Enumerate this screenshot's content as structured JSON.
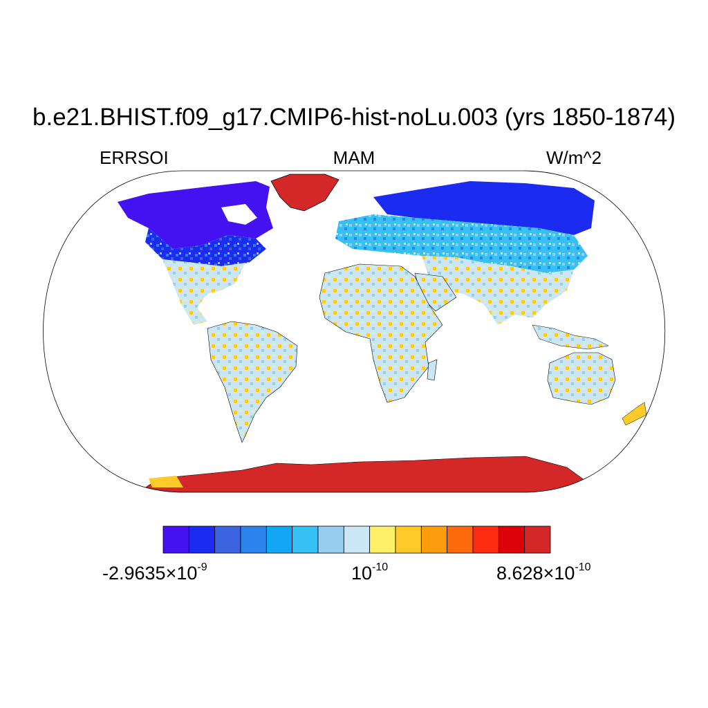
{
  "title": "b.e21.BHIST.f09_g17.CMIP6-hist-noLu.003 (yrs 1850-1874)",
  "subtitles": {
    "left": "ERRSOI",
    "center": "MAM",
    "right": "W/m^2"
  },
  "colorbar": {
    "colors": [
      "#4412f0",
      "#1b2cf0",
      "#3c63e0",
      "#2b84ee",
      "#12a6f5",
      "#36c1f4",
      "#97cdee",
      "#cbe7f6",
      "#fff06a",
      "#fdca28",
      "#fd9c0d",
      "#fd6a0b",
      "#fb2c10",
      "#dc0308",
      "#d42828"
    ],
    "labels": [
      {
        "mantissa": "-2.9635",
        "times": "×",
        "base": "10",
        "exp": "-9"
      },
      {
        "base": "10",
        "exp": "-10"
      },
      {
        "mantissa": "8.628",
        "times": "×",
        "base": "10",
        "exp": "-10"
      }
    ]
  },
  "regions": [
    {
      "name": "north-america-arctic",
      "color_index": 0
    },
    {
      "name": "greenland",
      "color_index": 14
    },
    {
      "name": "eurasia-north",
      "color_index": 1
    },
    {
      "name": "eurasia-mid",
      "color_index": 5
    },
    {
      "name": "africa",
      "color_index": 7
    },
    {
      "name": "south-america",
      "color_index": 7
    },
    {
      "name": "australia",
      "color_index": 7
    },
    {
      "name": "antarctica",
      "color_index": 14
    }
  ]
}
